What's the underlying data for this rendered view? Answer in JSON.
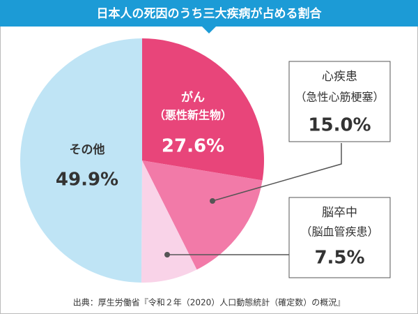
{
  "chart_data": {
    "type": "pie",
    "title": "日本人の死因のうち三大疾病が占める割合",
    "categories": [
      "がん",
      "心疾患",
      "脳卒中",
      "その他"
    ],
    "subcategories": [
      "（悪性新生物）",
      "（急性心筋梗塞）",
      "（脳血管疾患）",
      null
    ],
    "values": [
      27.6,
      15.0,
      7.5,
      49.9
    ],
    "value_labels": [
      "27.6%",
      "15.0%",
      "7.5%",
      "49.9%"
    ],
    "colors": [
      "#e8457a",
      "#f27aa8",
      "#f9d3e8",
      "#bfe4f5"
    ],
    "source": "出典：厚生労働省『令和２年（2020）人口動態統計（確定数）の概況』"
  }
}
